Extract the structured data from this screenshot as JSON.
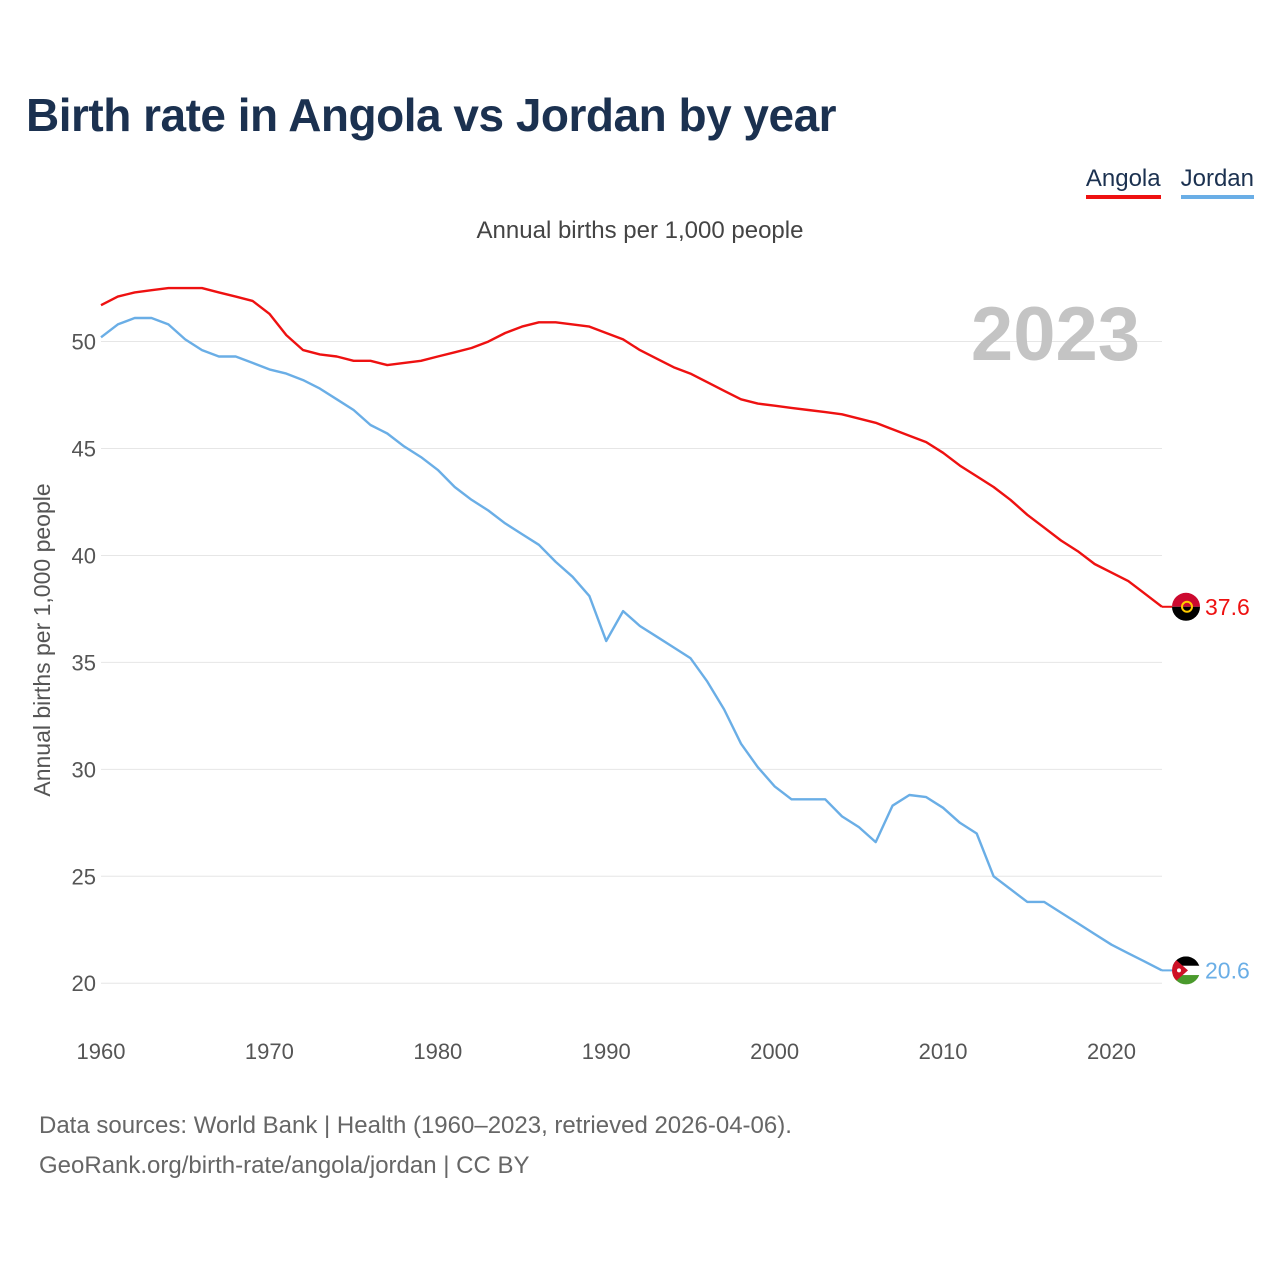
{
  "title": "Birth rate in Angola vs Jordan by year",
  "subtitle": "Annual births per 1,000 people",
  "legend": [
    {
      "label": "Angola",
      "color": "#ee1111"
    },
    {
      "label": "Jordan",
      "color": "#6aaee6"
    }
  ],
  "source": {
    "line1": "Data sources: World Bank | Health (1960–2023, retrieved 2026-04-06).",
    "line2": "GeoRank.org/birth-rate/angola/jordan | CC BY"
  },
  "chart_data": {
    "type": "line",
    "title": "Birth rate in Angola vs Jordan by year",
    "ylabel": "Annual births per 1,000 people",
    "year_label": "2023",
    "xlim": [
      1960,
      2023
    ],
    "ylim": [
      18,
      54
    ],
    "xticks": [
      1960,
      1970,
      1980,
      1990,
      2000,
      2010,
      2020
    ],
    "yticks": [
      20,
      25,
      30,
      35,
      40,
      45,
      50
    ],
    "x": [
      1960,
      1961,
      1962,
      1963,
      1964,
      1965,
      1966,
      1967,
      1968,
      1969,
      1970,
      1971,
      1972,
      1973,
      1974,
      1975,
      1976,
      1977,
      1978,
      1979,
      1980,
      1981,
      1982,
      1983,
      1984,
      1985,
      1986,
      1987,
      1988,
      1989,
      1990,
      1991,
      1992,
      1993,
      1994,
      1995,
      1996,
      1997,
      1998,
      1999,
      2000,
      2001,
      2002,
      2003,
      2004,
      2005,
      2006,
      2007,
      2008,
      2009,
      2010,
      2011,
      2012,
      2013,
      2014,
      2015,
      2016,
      2017,
      2018,
      2019,
      2020,
      2021,
      2022,
      2023
    ],
    "series": [
      {
        "name": "Angola",
        "color": "#ee1111",
        "end_label": "37.6",
        "values": [
          51.7,
          52.1,
          52.3,
          52.4,
          52.5,
          52.5,
          52.5,
          52.3,
          52.1,
          51.9,
          51.3,
          50.3,
          49.6,
          49.4,
          49.3,
          49.1,
          49.1,
          48.9,
          49.0,
          49.1,
          49.3,
          49.5,
          49.7,
          50.0,
          50.4,
          50.7,
          50.9,
          50.9,
          50.8,
          50.7,
          50.4,
          50.1,
          49.6,
          49.2,
          48.8,
          48.5,
          48.1,
          47.7,
          47.3,
          47.1,
          47.0,
          46.9,
          46.8,
          46.7,
          46.6,
          46.4,
          46.2,
          45.9,
          45.6,
          45.3,
          44.8,
          44.2,
          43.7,
          43.2,
          42.6,
          41.9,
          41.3,
          40.7,
          40.2,
          39.6,
          39.2,
          38.8,
          38.2,
          37.6
        ]
      },
      {
        "name": "Jordan",
        "color": "#6aaee6",
        "end_label": "20.6",
        "values": [
          50.2,
          50.8,
          51.1,
          51.1,
          50.8,
          50.1,
          49.6,
          49.3,
          49.3,
          49.0,
          48.7,
          48.5,
          48.2,
          47.8,
          47.3,
          46.8,
          46.1,
          45.7,
          45.1,
          44.6,
          44.0,
          43.2,
          42.6,
          42.1,
          41.5,
          41.0,
          40.5,
          39.7,
          39.0,
          38.1,
          36.0,
          37.4,
          36.7,
          36.2,
          35.7,
          35.2,
          34.1,
          32.8,
          31.2,
          30.1,
          29.2,
          28.6,
          28.6,
          28.6,
          27.8,
          27.3,
          26.6,
          28.3,
          28.8,
          28.7,
          28.2,
          27.5,
          27.0,
          25.0,
          24.4,
          23.8,
          23.8,
          23.3,
          22.8,
          22.3,
          21.8,
          21.4,
          21.0,
          20.6
        ]
      }
    ]
  }
}
